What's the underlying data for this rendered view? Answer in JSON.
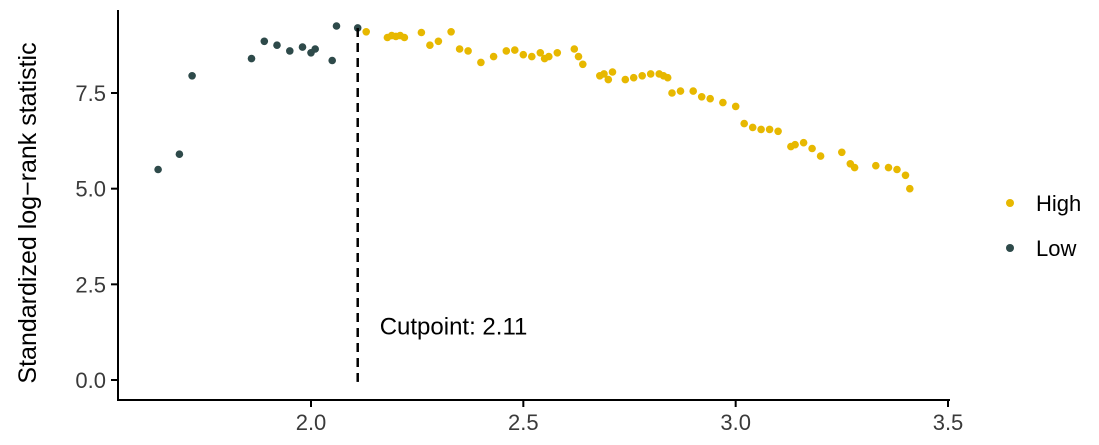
{
  "chart_data": {
    "type": "scatter",
    "title": "",
    "xlabel": "",
    "ylabel": "Standardized log−rank statistic",
    "xlim": [
      1.6,
      3.5
    ],
    "ylim": [
      -0.2,
      9.5
    ],
    "x_ticks": [
      2.0,
      2.5,
      3.0,
      3.5
    ],
    "x_tick_labels": [
      "2.0",
      "2.5",
      "3.0",
      "3.5"
    ],
    "y_ticks": [
      0.0,
      2.5,
      5.0,
      7.5
    ],
    "y_tick_labels": [
      "0.0",
      "2.5",
      "5.0",
      "7.5"
    ],
    "grid": false,
    "legend_placement": "right",
    "cutpoint": {
      "x": 2.11,
      "label": "Cutpoint: 2.11"
    },
    "series": [
      {
        "name": "High",
        "color": "#E7B800",
        "points": [
          [
            2.13,
            9.1
          ],
          [
            2.18,
            8.95
          ],
          [
            2.19,
            9.0
          ],
          [
            2.2,
            8.98
          ],
          [
            2.21,
            9.0
          ],
          [
            2.22,
            8.95
          ],
          [
            2.26,
            9.08
          ],
          [
            2.28,
            8.75
          ],
          [
            2.3,
            8.85
          ],
          [
            2.33,
            9.1
          ],
          [
            2.35,
            8.65
          ],
          [
            2.37,
            8.6
          ],
          [
            2.4,
            8.3
          ],
          [
            2.43,
            8.45
          ],
          [
            2.46,
            8.6
          ],
          [
            2.48,
            8.62
          ],
          [
            2.5,
            8.5
          ],
          [
            2.52,
            8.45
          ],
          [
            2.54,
            8.55
          ],
          [
            2.55,
            8.4
          ],
          [
            2.56,
            8.45
          ],
          [
            2.58,
            8.55
          ],
          [
            2.62,
            8.65
          ],
          [
            2.63,
            8.45
          ],
          [
            2.64,
            8.25
          ],
          [
            2.68,
            7.95
          ],
          [
            2.69,
            8.0
          ],
          [
            2.7,
            7.85
          ],
          [
            2.71,
            8.05
          ],
          [
            2.74,
            7.85
          ],
          [
            2.76,
            7.9
          ],
          [
            2.78,
            7.95
          ],
          [
            2.8,
            8.0
          ],
          [
            2.82,
            8.0
          ],
          [
            2.83,
            7.95
          ],
          [
            2.84,
            7.9
          ],
          [
            2.85,
            7.5
          ],
          [
            2.87,
            7.55
          ],
          [
            2.9,
            7.55
          ],
          [
            2.92,
            7.4
          ],
          [
            2.94,
            7.35
          ],
          [
            2.97,
            7.25
          ],
          [
            3.0,
            7.15
          ],
          [
            3.02,
            6.7
          ],
          [
            3.04,
            6.6
          ],
          [
            3.06,
            6.55
          ],
          [
            3.08,
            6.55
          ],
          [
            3.1,
            6.5
          ],
          [
            3.13,
            6.1
          ],
          [
            3.14,
            6.15
          ],
          [
            3.16,
            6.2
          ],
          [
            3.18,
            6.05
          ],
          [
            3.2,
            5.85
          ],
          [
            3.25,
            5.95
          ],
          [
            3.27,
            5.65
          ],
          [
            3.28,
            5.55
          ],
          [
            3.33,
            5.6
          ],
          [
            3.36,
            5.55
          ],
          [
            3.38,
            5.5
          ],
          [
            3.4,
            5.35
          ],
          [
            3.41,
            5.0
          ]
        ]
      },
      {
        "name": "Low",
        "color": "#2E4A4A",
        "points": [
          [
            1.64,
            5.5
          ],
          [
            1.69,
            5.9
          ],
          [
            1.72,
            7.95
          ],
          [
            1.86,
            8.4
          ],
          [
            1.89,
            8.85
          ],
          [
            1.92,
            8.75
          ],
          [
            1.95,
            8.6
          ],
          [
            1.98,
            8.7
          ],
          [
            2.0,
            8.55
          ],
          [
            2.01,
            8.65
          ],
          [
            2.05,
            8.35
          ],
          [
            2.06,
            9.25
          ],
          [
            2.11,
            9.2
          ]
        ]
      }
    ]
  },
  "legend": {
    "items": [
      {
        "label": "High",
        "color": "#E7B800"
      },
      {
        "label": "Low",
        "color": "#2E4A4A"
      }
    ]
  }
}
